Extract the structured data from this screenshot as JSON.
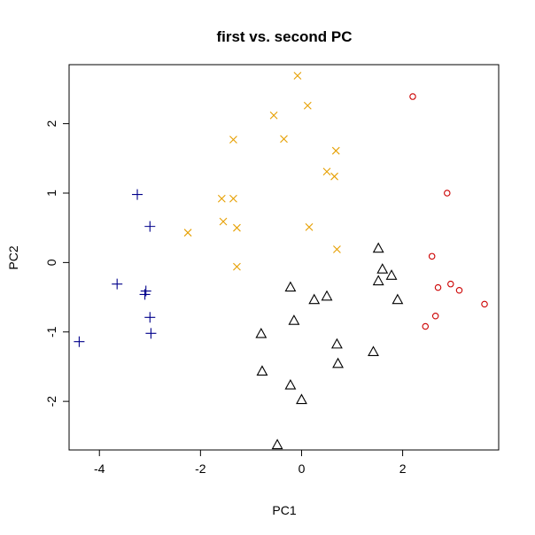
{
  "chart_data": {
    "type": "scatter",
    "title": "first vs. second PC",
    "xlabel": "PC1",
    "ylabel": "PC2",
    "xlim": [
      -4.6,
      3.9
    ],
    "ylim": [
      -2.7,
      2.85
    ],
    "x_ticks": [
      -4,
      -2,
      0,
      2
    ],
    "y_ticks": [
      -2,
      -1,
      0,
      1,
      2
    ],
    "grid": false,
    "legend": "none",
    "series": [
      {
        "marker": "plus",
        "color": "#00008B",
        "points": [
          [
            -3.25,
            0.98
          ],
          [
            -3.0,
            0.52
          ],
          [
            -3.65,
            -0.31
          ],
          [
            -3.08,
            -0.41
          ],
          [
            -3.1,
            -0.46
          ],
          [
            -3.0,
            -0.79
          ],
          [
            -2.98,
            -1.02
          ],
          [
            -4.4,
            -1.14
          ]
        ]
      },
      {
        "marker": "cross",
        "color": "#E69F00",
        "points": [
          [
            -0.08,
            2.69
          ],
          [
            0.12,
            2.26
          ],
          [
            -0.55,
            2.12
          ],
          [
            -1.35,
            1.77
          ],
          [
            -0.35,
            1.78
          ],
          [
            0.68,
            1.61
          ],
          [
            0.5,
            1.31
          ],
          [
            0.65,
            1.24
          ],
          [
            -1.58,
            0.92
          ],
          [
            -1.35,
            0.92
          ],
          [
            -1.55,
            0.59
          ],
          [
            -1.28,
            0.5
          ],
          [
            0.15,
            0.51
          ],
          [
            -2.25,
            0.43
          ],
          [
            0.7,
            0.19
          ],
          [
            -1.28,
            -0.06
          ]
        ]
      },
      {
        "marker": "triangle",
        "color": "#000000",
        "points": [
          [
            1.52,
            0.2
          ],
          [
            1.6,
            -0.1
          ],
          [
            1.78,
            -0.19
          ],
          [
            1.52,
            -0.27
          ],
          [
            -0.22,
            -0.36
          ],
          [
            1.9,
            -0.54
          ],
          [
            0.25,
            -0.54
          ],
          [
            0.5,
            -0.49
          ],
          [
            -0.15,
            -0.84
          ],
          [
            -0.8,
            -1.03
          ],
          [
            0.7,
            -1.18
          ],
          [
            1.42,
            -1.29
          ],
          [
            0.72,
            -1.46
          ],
          [
            -0.78,
            -1.57
          ],
          [
            -0.22,
            -1.77
          ],
          [
            0.0,
            -1.98
          ],
          [
            -0.48,
            -2.63
          ]
        ]
      },
      {
        "marker": "circle",
        "color": "#CC0000",
        "points": [
          [
            2.2,
            2.39
          ],
          [
            2.88,
            1.0
          ],
          [
            2.58,
            0.09
          ],
          [
            2.7,
            -0.36
          ],
          [
            2.95,
            -0.31
          ],
          [
            3.12,
            -0.4
          ],
          [
            3.62,
            -0.6
          ],
          [
            2.65,
            -0.77
          ],
          [
            2.45,
            -0.92
          ]
        ]
      }
    ]
  }
}
